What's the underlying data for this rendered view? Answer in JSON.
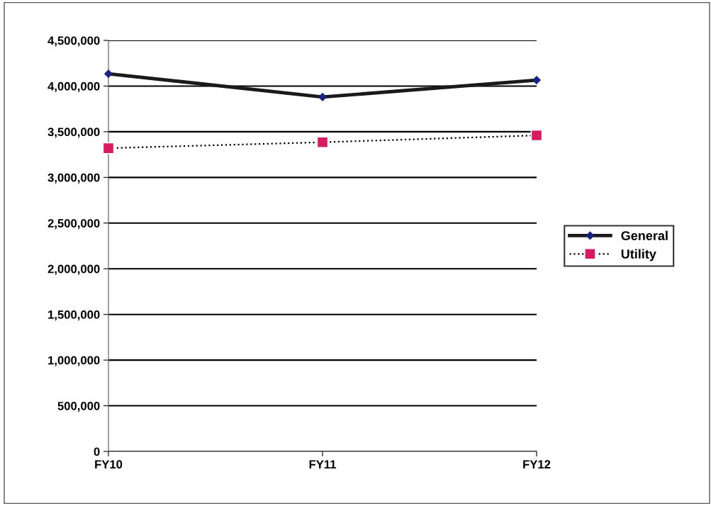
{
  "chart_data": {
    "type": "line",
    "categories": [
      "FY10",
      "FY11",
      "FY12"
    ],
    "series": [
      {
        "name": "General",
        "color": "#1a1a1a",
        "values": [
          4135000,
          3880000,
          4065000
        ],
        "marker": "diamond",
        "line_style": "solid"
      },
      {
        "name": "Utility",
        "color": "#d81b60",
        "values": [
          3320000,
          3385000,
          3460000
        ],
        "marker": "square",
        "line_style": "dotted"
      }
    ],
    "ylim": [
      0,
      4500000
    ],
    "yticks": [
      {
        "value": 0,
        "label": "0"
      },
      {
        "value": 500000,
        "label": "500,000"
      },
      {
        "value": 1000000,
        "label": "1,000,000"
      },
      {
        "value": 1500000,
        "label": "1,500,000"
      },
      {
        "value": 2000000,
        "label": "2,000,000"
      },
      {
        "value": 2500000,
        "label": "2,500,000"
      },
      {
        "value": 3000000,
        "label": "3,000,000"
      },
      {
        "value": 3500000,
        "label": "3,500,000"
      },
      {
        "value": 4000000,
        "label": "4,000,000"
      },
      {
        "value": 4500000,
        "label": "4,500,000"
      }
    ],
    "grid": "y",
    "legend": "right"
  }
}
